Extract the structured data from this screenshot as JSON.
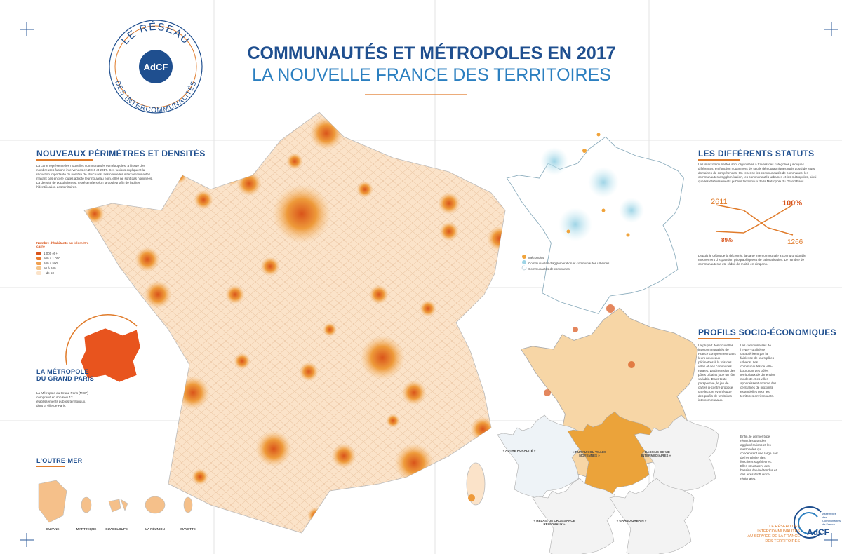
{
  "logo": {
    "top": "LE RÉSEAU",
    "name": "AdCF",
    "bottom": "DES INTERCOMMUNALITÉS"
  },
  "header": {
    "title": "COMMUNAUTÉS ET MÉTROPOLES EN 2017",
    "subtitle": "LA NOUVELLE FRANCE DES TERRITOIRES"
  },
  "densites": {
    "heading": "NOUVEAUX PÉRIMÈTRES ET DENSITÉS",
    "text": "La carte représente les nouvelles communautés et métropoles, à l'issue des nombreuses fusions intervenues en 2016 et 2017. Ces fusions expliquent la réduction importante du nombre de structures. Les nouvelles intercommunalités n'ayant pas encore toutes adopté leur nouveau nom, elles ne sont pas nommées. La densité de population est représentée selon la couleur afin de faciliter l'identification des territoires.",
    "legend": {
      "title": "Nombre d'habitants au kilomètre carré",
      "items": [
        "1 000 et +",
        "500 à 1 000",
        "100 à 500",
        "50 à 100",
        "– de 50"
      ]
    }
  },
  "grand_paris": {
    "heading": "LA MÉTROPOLE DU GRAND PARIS",
    "text": "La Métropole du Grand Paris (MGP) comprend en son sein 12 établissements publics territoriaux, dont la ville de Paris."
  },
  "outre_mer": {
    "heading": "L'OUTRE-MER",
    "territories": [
      "GUYANE",
      "MARTINIQUE",
      "GUADELOUPE",
      "LA RÉUNION",
      "MAYOTTE"
    ]
  },
  "statuts": {
    "heading": "LES DIFFÉRENTS STATUTS",
    "text": "Les intercommunalités sont organisées à travers des catégories juridiques différentes, en fonction notamment de seuils démographiques mais aussi de leurs domaines de compétences. On recense les communautés de communes, les communautés d'agglomération, les communautés urbaines et les métropoles, ainsi que les établissements publics territoriaux de la Métropole du Grand Paris.",
    "chart_labels": [
      "2611",
      "1266",
      "100%",
      "89%"
    ],
    "legend": [
      "Métropoles",
      "Communautés d'agglomération et communautés urbaines",
      "Communautés de communes"
    ],
    "text2": "Depuis le début de la décennie, la carte intercommunale a connu un double mouvement d'expansion géographique et de rationalisation. Le nombre de communautés a été réduit de moitié en cinq ans."
  },
  "profils": {
    "heading": "PROFILS SOCIO-ÉCONOMIQUES",
    "columns": [
      "La plupart des nouvelles intercommunalités de France comprennent dans leurs nouveaux périmètres à la fois des villes et des communes rurales. La dimension des pôles urbains joue un rôle variable. Dans toute perspective, le jeu de cartes ci-contre propose une lecture synthétique des profils de territoires intercommunaux.",
      "Les communautés de l'hyper-ruralité se caractérisent par la faiblesse de leurs pôles urbains. Les communautés de ville-bourg ont des pôles territoriaux de dimension modeste. Ces villes apparaissent comme des centralités de proximité essentielles pour les territoires environnants.",
      "Enfin, le dernier type réunit les grandes agglomérations et les métropoles qui concentrent une large part de l'emploi et des fonctions supérieures. Elles structurent des bassins de vie étendus et des aires d'influence régionales."
    ],
    "maps": [
      "« AUTRE RURALITÉ »",
      "« RURAUX OU VILLES MOYENNES »",
      "« BASSINS DE VIE INTERMÉDIAIRES »",
      "« RELAIS DE CROISSANCE RÉGIONAUX »",
      "« GRAND URBAIN »"
    ]
  },
  "footer": {
    "tagline": [
      "LE RÉSEAU DES",
      "INTERCOMMUNALITÉS",
      "AU SERVICE DE LA FRANCE",
      "DES TERRITOIRES"
    ],
    "brand": "AdCF",
    "brand_sub": "Assemblée des Communautés de France"
  }
}
